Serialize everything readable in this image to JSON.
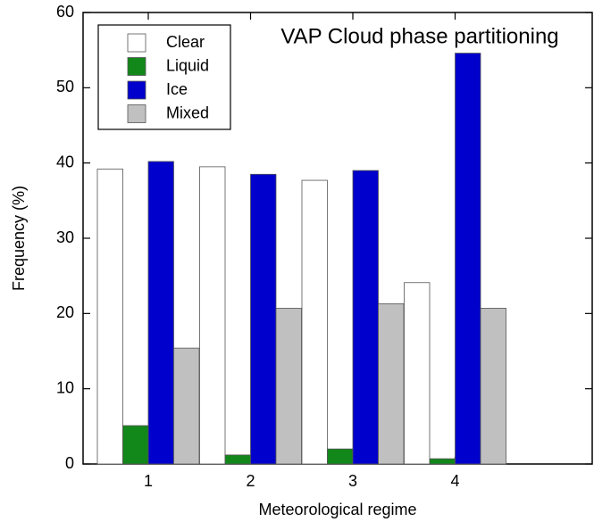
{
  "chart_data": {
    "type": "bar",
    "title": "VAP Cloud phase partitioning",
    "x_label": "Meteorological regime",
    "y_label": "Frequency (%)",
    "categories": [
      "1",
      "2",
      "3",
      "4"
    ],
    "series": [
      {
        "name": "Clear",
        "color": "#ffffff",
        "values": [
          39.2,
          39.5,
          37.7,
          24.1
        ]
      },
      {
        "name": "Liquid",
        "color": "#12871a",
        "values": [
          5.1,
          1.2,
          2.0,
          0.7
        ]
      },
      {
        "name": "Ice",
        "color": "#0000cc",
        "values": [
          40.2,
          38.5,
          39.0,
          54.6
        ]
      },
      {
        "name": "Mixed",
        "color": "#c0c0c0",
        "values": [
          15.4,
          20.7,
          21.3,
          20.7
        ]
      }
    ],
    "ylim": [
      0,
      60
    ],
    "yticks": [
      0,
      10,
      20,
      30,
      40,
      50,
      60
    ],
    "legend": "upper left"
  }
}
